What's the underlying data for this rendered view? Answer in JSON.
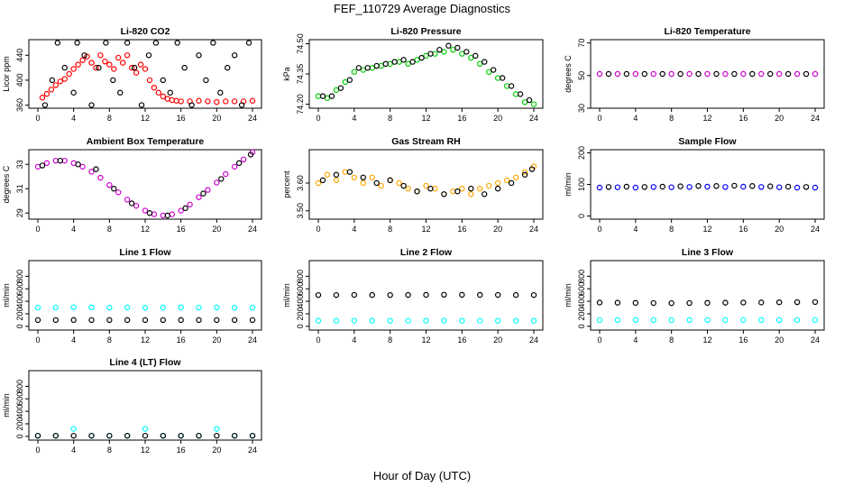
{
  "title": "FEF_110729  Average Diagnostics",
  "xlabel": "Hour of Day (UTC)",
  "x_ticks": [
    "0",
    "4",
    "8",
    "12",
    "16",
    "20",
    "24"
  ],
  "chart_data": [
    {
      "type": "scatter",
      "title": "Li-820 CO2",
      "ylabel": "Licor ppm",
      "xlim": [
        0,
        24
      ],
      "ylim": [
        355,
        465
      ],
      "yticks": [
        "360",
        "400",
        "440"
      ],
      "series": [
        {
          "color": "#ff0000",
          "x": [
            0.5,
            1,
            1.5,
            2,
            2.5,
            3,
            3.5,
            4,
            4.5,
            5,
            5.5,
            6,
            6.5,
            7,
            7.5,
            8,
            8.5,
            9,
            9.5,
            10,
            10.5,
            11,
            11.5,
            12,
            12.5,
            13,
            13.5,
            14,
            14.5,
            15,
            15.5,
            16,
            17,
            18,
            19,
            20,
            21,
            22,
            23,
            24
          ],
          "y": [
            372,
            378,
            385,
            392,
            398,
            402,
            410,
            418,
            425,
            432,
            438,
            428,
            420,
            440,
            430,
            425,
            418,
            436,
            428,
            440,
            420,
            412,
            425,
            418,
            400,
            388,
            380,
            374,
            370,
            368,
            367,
            366,
            366,
            367,
            366,
            365,
            366,
            366,
            366,
            367
          ]
        },
        {
          "color": "#000000",
          "x": [
            0.8,
            1.6,
            2.2,
            3,
            4,
            4.4,
            5.2,
            6,
            6.8,
            7.6,
            8.4,
            9.2,
            10,
            10.8,
            11.6,
            12.4,
            13.2,
            14,
            14.8,
            15.6,
            16.4,
            17.2,
            18,
            18.8,
            19.6,
            20.4,
            21.2,
            22,
            22.8,
            23.6
          ],
          "y": [
            360,
            400,
            460,
            420,
            380,
            460,
            440,
            360,
            420,
            460,
            400,
            380,
            460,
            420,
            360,
            440,
            460,
            400,
            380,
            460,
            420,
            360,
            440,
            400,
            460,
            380,
            420,
            440,
            360,
            460
          ]
        }
      ]
    },
    {
      "type": "scatter",
      "title": "Li-820 Pressure",
      "ylabel": "kPa",
      "xlim": [
        0,
        24
      ],
      "ylim": [
        74.18,
        74.52
      ],
      "yticks": [
        "74.20",
        "74.35",
        "74.50"
      ],
      "series": [
        {
          "color": "#00cc00",
          "x": [
            0,
            1,
            2,
            3,
            4,
            5,
            6,
            7,
            8,
            9,
            10,
            11,
            12,
            13,
            14,
            15,
            16,
            17,
            18,
            19,
            20,
            21,
            22,
            23,
            24
          ],
          "y": [
            74.24,
            74.23,
            74.27,
            74.31,
            74.36,
            74.37,
            74.38,
            74.39,
            74.4,
            74.41,
            74.4,
            74.42,
            74.44,
            74.45,
            74.46,
            74.47,
            74.45,
            74.43,
            74.4,
            74.36,
            74.33,
            74.29,
            74.25,
            74.21,
            74.2
          ]
        },
        {
          "color": "#000000",
          "x": [
            0.5,
            1.5,
            2.5,
            3.5,
            4.5,
            5.5,
            6.5,
            7.5,
            8.5,
            9.5,
            10.5,
            11.5,
            12.5,
            13.5,
            14.5,
            15.5,
            16.5,
            17.5,
            18.5,
            19.5,
            20.5,
            21.5,
            22.5,
            23.5
          ],
          "y": [
            74.24,
            74.24,
            74.28,
            74.32,
            74.38,
            74.38,
            74.39,
            74.4,
            74.41,
            74.42,
            74.41,
            74.43,
            74.45,
            74.47,
            74.49,
            74.48,
            74.46,
            74.44,
            74.41,
            74.37,
            74.33,
            74.29,
            74.25,
            74.22
          ]
        }
      ]
    },
    {
      "type": "scatter",
      "title": "Li-820 Temperature",
      "ylabel": "degrees C",
      "xlim": [
        0,
        24
      ],
      "ylim": [
        30,
        72
      ],
      "yticks": [
        "30",
        "50",
        "70"
      ],
      "series": [
        {
          "color": "#cc00cc",
          "x": [
            0,
            2,
            4,
            6,
            8,
            10,
            12,
            14,
            16,
            18,
            20,
            22,
            24
          ],
          "y": [
            51,
            51,
            51,
            51,
            51,
            51,
            51,
            51,
            51,
            51,
            51,
            51,
            51
          ]
        },
        {
          "color": "#000000",
          "x": [
            1,
            3,
            5,
            7,
            9,
            11,
            13,
            15,
            17,
            19,
            21,
            23
          ],
          "y": [
            51,
            51,
            51,
            51,
            51,
            51,
            51,
            51,
            51,
            51,
            51,
            51
          ]
        }
      ]
    },
    {
      "type": "scatter",
      "title": "Ambient Box Temperature",
      "ylabel": "degrees C",
      "xlim": [
        0,
        24
      ],
      "ylim": [
        28.5,
        34.2
      ],
      "yticks": [
        "29",
        "31",
        "33"
      ],
      "series": [
        {
          "color": "#cc00cc",
          "x": [
            0,
            1,
            2,
            3,
            4,
            5,
            6,
            7,
            8,
            9,
            10,
            11,
            12,
            13,
            14,
            15,
            16,
            17,
            18,
            19,
            20,
            21,
            22,
            23,
            24
          ],
          "y": [
            32.8,
            33.1,
            33.3,
            33.3,
            33.1,
            32.8,
            32.4,
            31.9,
            31.3,
            30.7,
            30.1,
            29.6,
            29.2,
            28.9,
            28.8,
            28.9,
            29.2,
            29.7,
            30.3,
            30.9,
            31.5,
            32.2,
            32.8,
            33.4,
            34.0
          ]
        },
        {
          "color": "#000000",
          "x": [
            0.5,
            2.5,
            4.5,
            6.5,
            8.5,
            10.5,
            12.5,
            14.5,
            16.5,
            18.5,
            20.5,
            22.5,
            23.8
          ],
          "y": [
            32.9,
            33.3,
            33.0,
            32.6,
            31.0,
            29.8,
            29.0,
            28.8,
            29.4,
            30.6,
            31.8,
            33.1,
            33.8
          ]
        }
      ]
    },
    {
      "type": "scatter",
      "title": "Gas Stream RH",
      "ylabel": "percent",
      "xlim": [
        0,
        24
      ],
      "ylim": [
        3.47,
        3.72
      ],
      "yticks": [
        "3.50",
        "3.60"
      ],
      "series": [
        {
          "color": "#ffa500",
          "x": [
            0,
            1,
            2,
            3,
            4,
            5,
            6,
            7,
            8,
            9,
            10,
            11,
            12,
            13,
            14,
            15,
            16,
            17,
            18,
            19,
            20,
            21,
            22,
            23,
            24
          ],
          "y": [
            3.6,
            3.63,
            3.61,
            3.64,
            3.62,
            3.6,
            3.62,
            3.59,
            3.61,
            3.6,
            3.58,
            3.57,
            3.59,
            3.58,
            3.56,
            3.57,
            3.58,
            3.56,
            3.58,
            3.59,
            3.6,
            3.61,
            3.62,
            3.64,
            3.66
          ]
        },
        {
          "color": "#000000",
          "x": [
            0.5,
            2,
            3.5,
            5,
            6.5,
            8,
            9.5,
            11,
            12.5,
            14,
            15.5,
            17,
            18.5,
            20,
            21.5,
            23,
            23.8
          ],
          "y": [
            3.61,
            3.63,
            3.64,
            3.62,
            3.6,
            3.61,
            3.59,
            3.57,
            3.58,
            3.56,
            3.57,
            3.58,
            3.56,
            3.58,
            3.6,
            3.63,
            3.65
          ]
        }
      ]
    },
    {
      "type": "scatter",
      "title": "Sample Flow",
      "ylabel": "ml/min",
      "xlim": [
        0,
        24
      ],
      "ylim": [
        -10,
        210
      ],
      "yticks": [
        "0",
        "100",
        "200"
      ],
      "series": [
        {
          "color": "#0000ff",
          "x": [
            0,
            2,
            4,
            6,
            8,
            10,
            12,
            14,
            16,
            18,
            20,
            22,
            24
          ],
          "y": [
            90,
            91,
            90,
            92,
            91,
            92,
            93,
            92,
            93,
            92,
            91,
            90,
            90
          ]
        },
        {
          "color": "#000000",
          "x": [
            1,
            3,
            5,
            7,
            9,
            11,
            13,
            15,
            17,
            19,
            21,
            23
          ],
          "y": [
            92,
            93,
            92,
            93,
            94,
            95,
            95,
            96,
            95,
            94,
            93,
            92
          ]
        }
      ]
    },
    {
      "type": "scatter",
      "title": "Line 1 Flow",
      "ylabel": "ml/min",
      "xlim": [
        0,
        24
      ],
      "ylim": [
        -60,
        1050
      ],
      "yticks": [
        "0",
        "200",
        "400",
        "600",
        "800"
      ],
      "series": [
        {
          "color": "#00ffff",
          "x": [
            0,
            2,
            4,
            6,
            8,
            10,
            12,
            14,
            16,
            18,
            20,
            22,
            24
          ],
          "y": [
            300,
            302,
            305,
            303,
            300,
            302,
            298,
            301,
            303,
            300,
            302,
            299,
            300
          ]
        },
        {
          "color": "#000000",
          "x": [
            0,
            2,
            4,
            6,
            8,
            10,
            12,
            14,
            16,
            18,
            20,
            22,
            24
          ],
          "y": [
            100,
            100,
            101,
            100,
            100,
            101,
            100,
            100,
            101,
            100,
            100,
            100,
            100
          ]
        }
      ]
    },
    {
      "type": "scatter",
      "title": "Line 2 Flow",
      "ylabel": "ml/min",
      "xlim": [
        0,
        24
      ],
      "ylim": [
        -60,
        1050
      ],
      "yticks": [
        "0",
        "200",
        "400",
        "600",
        "800"
      ],
      "series": [
        {
          "color": "#00ffff",
          "x": [
            0,
            2,
            4,
            6,
            8,
            10,
            12,
            14,
            16,
            18,
            20,
            22,
            24
          ],
          "y": [
            90,
            90,
            91,
            90,
            89,
            90,
            90,
            91,
            90,
            90,
            89,
            90,
            90
          ]
        },
        {
          "color": "#000000",
          "x": [
            0,
            2,
            4,
            6,
            8,
            10,
            12,
            14,
            16,
            18,
            20,
            22,
            24
          ],
          "y": [
            500,
            500,
            502,
            501,
            500,
            502,
            503,
            505,
            504,
            503,
            502,
            501,
            500
          ]
        }
      ]
    },
    {
      "type": "scatter",
      "title": "Line 3 Flow",
      "ylabel": "ml/min",
      "xlim": [
        0,
        24
      ],
      "ylim": [
        -60,
        1050
      ],
      "yticks": [
        "0",
        "200",
        "400",
        "600",
        "800"
      ],
      "series": [
        {
          "color": "#00ffff",
          "x": [
            0,
            2,
            4,
            6,
            8,
            10,
            12,
            14,
            16,
            18,
            20,
            22,
            24
          ],
          "y": [
            100,
            100,
            101,
            100,
            99,
            100,
            100,
            101,
            100,
            100,
            99,
            100,
            100
          ]
        },
        {
          "color": "#000000",
          "x": [
            0,
            2,
            4,
            6,
            8,
            10,
            12,
            14,
            16,
            18,
            20,
            22,
            24
          ],
          "y": [
            380,
            378,
            375,
            372,
            370,
            372,
            375,
            378,
            380,
            382,
            384,
            386,
            388
          ]
        }
      ]
    },
    {
      "type": "scatter",
      "title": "Line 4 (LT) Flow",
      "ylabel": "ml/min",
      "xlim": [
        0,
        24
      ],
      "ylim": [
        -60,
        1050
      ],
      "yticks": [
        "0",
        "200",
        "400",
        "600",
        "800"
      ],
      "series": [
        {
          "color": "#00ffff",
          "x": [
            0,
            2,
            4,
            6,
            8,
            10,
            12,
            14,
            16,
            18,
            20,
            22,
            24
          ],
          "y": [
            10,
            10,
            120,
            10,
            10,
            10,
            120,
            10,
            10,
            10,
            120,
            10,
            10
          ]
        },
        {
          "color": "#000000",
          "x": [
            0,
            2,
            4,
            6,
            8,
            10,
            12,
            14,
            16,
            18,
            20,
            22,
            24
          ],
          "y": [
            10,
            10,
            10,
            10,
            10,
            10,
            10,
            10,
            10,
            10,
            10,
            10,
            10
          ]
        }
      ]
    }
  ]
}
